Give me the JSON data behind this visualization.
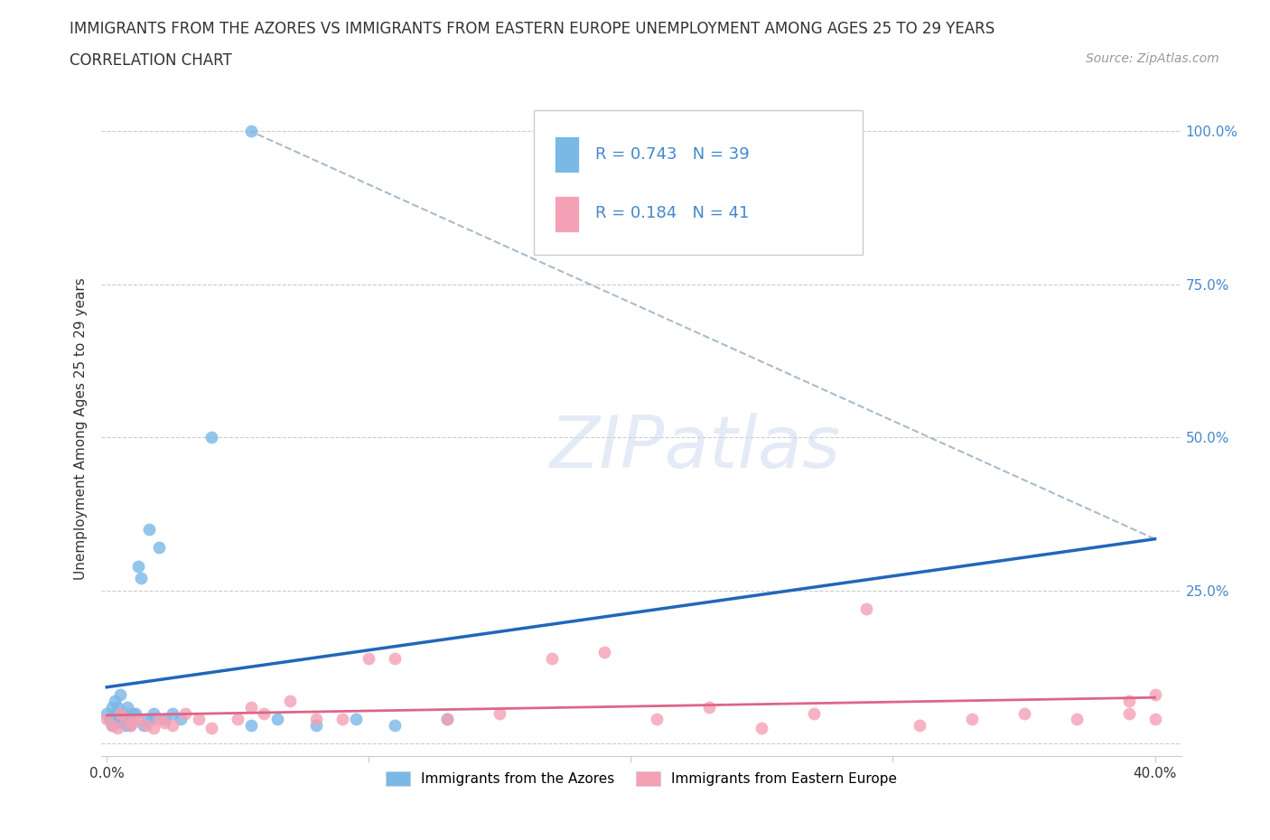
{
  "title_line1": "IMMIGRANTS FROM THE AZORES VS IMMIGRANTS FROM EASTERN EUROPE UNEMPLOYMENT AMONG AGES 25 TO 29 YEARS",
  "title_line2": "CORRELATION CHART",
  "source_text": "Source: ZipAtlas.com",
  "ylabel": "Unemployment Among Ages 25 to 29 years",
  "xlim": [
    -0.002,
    0.41
  ],
  "ylim": [
    -0.02,
    1.05
  ],
  "color_azores": "#7ab8e8",
  "color_eastern": "#f4a0b5",
  "line_color_azores": "#2266bb",
  "line_color_eastern": "#dd6688",
  "R_azores": 0.743,
  "N_azores": 39,
  "R_eastern": 0.184,
  "N_eastern": 41,
  "azores_x": [
    0.0,
    0.001,
    0.002,
    0.002,
    0.003,
    0.003,
    0.004,
    0.004,
    0.005,
    0.005,
    0.006,
    0.006,
    0.007,
    0.007,
    0.008,
    0.008,
    0.009,
    0.01,
    0.01,
    0.011,
    0.012,
    0.013,
    0.014,
    0.015,
    0.016,
    0.017,
    0.018,
    0.02,
    0.022,
    0.025,
    0.028,
    0.04,
    0.055,
    0.065,
    0.08,
    0.095,
    0.11,
    0.13,
    0.055
  ],
  "azores_y": [
    0.05,
    0.04,
    0.06,
    0.03,
    0.07,
    0.04,
    0.05,
    0.06,
    0.035,
    0.08,
    0.04,
    0.05,
    0.03,
    0.04,
    0.04,
    0.06,
    0.03,
    0.05,
    0.04,
    0.05,
    0.29,
    0.27,
    0.03,
    0.04,
    0.35,
    0.04,
    0.05,
    0.32,
    0.04,
    0.05,
    0.04,
    0.5,
    0.03,
    0.04,
    0.03,
    0.04,
    0.03,
    0.04,
    1.0
  ],
  "eastern_x": [
    0.0,
    0.002,
    0.004,
    0.005,
    0.007,
    0.009,
    0.01,
    0.012,
    0.015,
    0.018,
    0.02,
    0.022,
    0.025,
    0.03,
    0.035,
    0.04,
    0.05,
    0.055,
    0.06,
    0.07,
    0.08,
    0.09,
    0.1,
    0.11,
    0.13,
    0.15,
    0.17,
    0.19,
    0.21,
    0.23,
    0.25,
    0.27,
    0.29,
    0.31,
    0.33,
    0.35,
    0.37,
    0.39,
    0.39,
    0.4,
    0.4
  ],
  "eastern_y": [
    0.04,
    0.03,
    0.025,
    0.05,
    0.04,
    0.03,
    0.035,
    0.04,
    0.03,
    0.025,
    0.04,
    0.035,
    0.03,
    0.05,
    0.04,
    0.025,
    0.04,
    0.06,
    0.05,
    0.07,
    0.04,
    0.04,
    0.14,
    0.14,
    0.04,
    0.05,
    0.14,
    0.15,
    0.04,
    0.06,
    0.025,
    0.05,
    0.22,
    0.03,
    0.04,
    0.05,
    0.04,
    0.05,
    0.07,
    0.04,
    0.08
  ],
  "background_color": "#ffffff",
  "grid_color": "#cccccc",
  "title_fontsize": 12,
  "axis_label_fontsize": 11,
  "tick_fontsize": 11,
  "legend_fontsize": 13
}
